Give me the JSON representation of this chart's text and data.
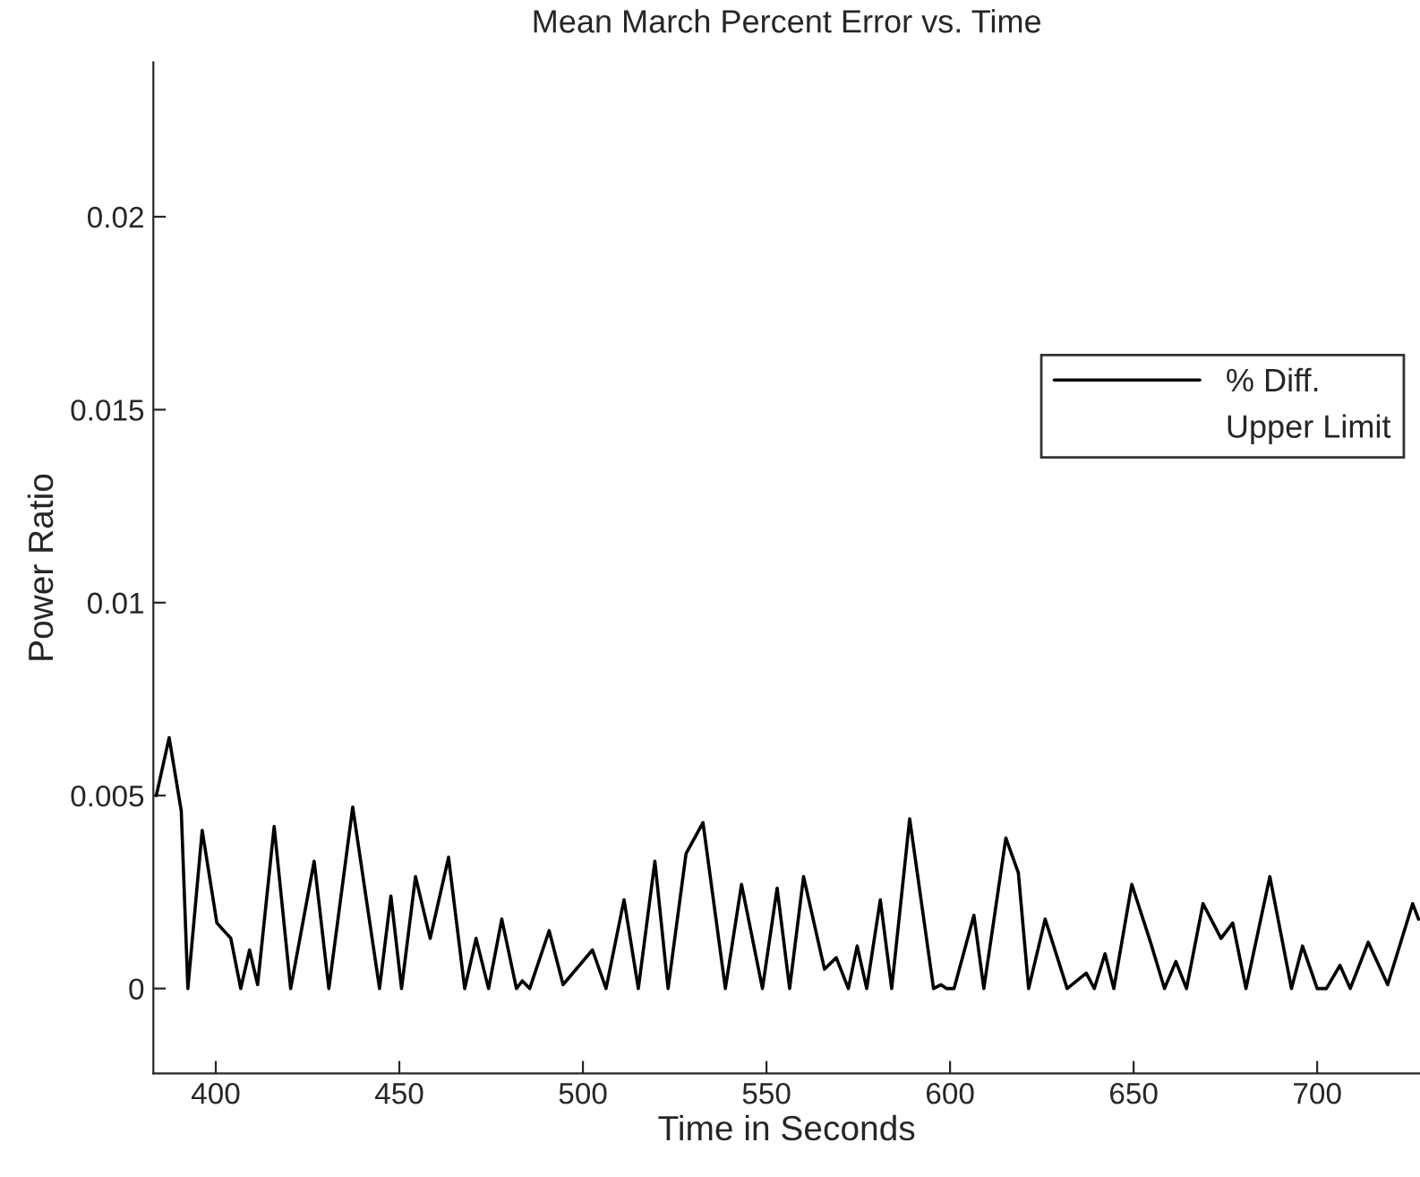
{
  "chart_data": {
    "type": "line",
    "title": "Mean March Percent Error vs. Time",
    "xlabel": "Time in Seconds",
    "ylabel": "Power Ratio",
    "xlim": [
      383,
      728
    ],
    "ylim": [
      -0.0022,
      0.024
    ],
    "xticks": [
      400,
      450,
      500,
      550,
      600,
      650,
      700
    ],
    "yticks": [
      0,
      0.005,
      0.01,
      0.015,
      0.02
    ],
    "grid": false,
    "legend": "right",
    "line_style": "solid",
    "marker": "none",
    "series": [
      {
        "name": "% Diff.",
        "color": "#000000",
        "x": [
          383.8,
          387.3,
          390.6,
          392.4,
          396.3,
          400.3,
          404.1,
          406.8,
          409.2,
          411.4,
          415.9,
          420.4,
          426.8,
          430.8,
          437.3,
          444.6,
          447.7,
          450.6,
          454.4,
          458.4,
          463.4,
          467.8,
          470.9,
          474.3,
          477.9,
          481.9,
          483.5,
          485.5,
          490.8,
          494.6,
          502.6,
          506.3,
          511.2,
          515.1,
          519.6,
          523.2,
          528.1,
          532.7,
          538.8,
          543.2,
          548.9,
          552.9,
          556.3,
          560.1,
          565.8,
          569.0,
          572.3,
          574.7,
          577.3,
          581.0,
          584.1,
          589.0,
          595.5,
          597.5,
          599.0,
          601.1,
          606.5,
          609.2,
          615.2,
          618.6,
          621.4,
          625.9,
          631.9,
          637.1,
          639.3,
          642.2,
          644.6,
          649.5,
          654.6,
          658.4,
          661.5,
          664.4,
          668.9,
          673.8,
          677.0,
          680.6,
          687.1,
          693.0,
          696.0,
          700.0,
          702.5,
          706.2,
          709.0,
          713.9,
          719.2,
          726.0,
          727.6
        ],
        "values": [
          0.005,
          0.0065,
          0.0046,
          0.0,
          0.0041,
          0.0017,
          0.0013,
          0.0,
          0.001,
          0.0001,
          0.0042,
          0.0,
          0.0033,
          0.0,
          0.0047,
          0.0,
          0.0024,
          0.0,
          0.0029,
          0.0013,
          0.0034,
          0.0,
          0.0013,
          0.0,
          0.0018,
          0.0,
          0.0002,
          0.0,
          0.0015,
          0.0001,
          0.001,
          0.0,
          0.0023,
          0.0,
          0.0033,
          0.0,
          0.0035,
          0.0043,
          0.0,
          0.0027,
          0.0,
          0.0026,
          0.0,
          0.0029,
          0.0005,
          0.0008,
          0.0,
          0.0011,
          0.0,
          0.0023,
          0.0,
          0.0044,
          0.0,
          0.0001,
          0.0,
          0.0,
          0.0019,
          0.0,
          0.0039,
          0.003,
          0.0,
          0.0018,
          0.0,
          0.0004,
          0.0,
          0.0009,
          0.0,
          0.0027,
          0.0012,
          0.0,
          0.0007,
          0.0,
          0.0022,
          0.0013,
          0.0017,
          0.0,
          0.0029,
          0.0,
          0.0011,
          0.0,
          0.0,
          0.0006,
          0.0,
          0.0012,
          0.0001,
          0.0022,
          0.0018
        ]
      },
      {
        "name": "Upper Limit"
      }
    ]
  }
}
